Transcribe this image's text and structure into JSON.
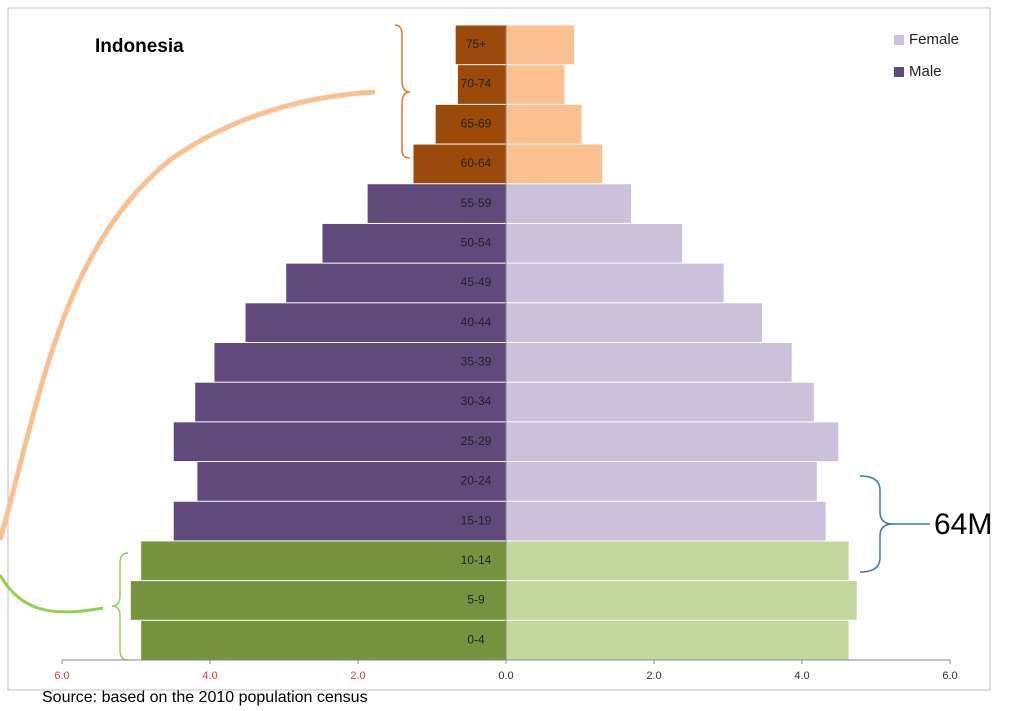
{
  "chart_data": {
    "type": "pyramid",
    "title": "Indonesia",
    "categories": [
      "75+",
      "70-74",
      "65-69",
      "60-64",
      "55-59",
      "50-54",
      "45-49",
      "40-44",
      "35-39",
      "30-34",
      "25-29",
      "20-24",
      "15-19",
      "10-14",
      "5-9",
      "0-4"
    ],
    "series": [
      {
        "name": "Female",
        "color": "#ccc1da",
        "values": [
          0.92,
          0.79,
          1.02,
          1.3,
          1.69,
          2.38,
          2.94,
          3.46,
          3.86,
          4.16,
          4.49,
          4.2,
          4.32,
          4.63,
          4.74,
          4.63
        ],
        "colors": [
          "#fac090",
          "#fac090",
          "#fac090",
          "#fac090",
          "#ccc1da",
          "#ccc1da",
          "#ccc1da",
          "#ccc1da",
          "#ccc1da",
          "#ccc1da",
          "#ccc1da",
          "#ccc1da",
          "#ccc1da",
          "#c3d69b",
          "#c3d69b",
          "#c3d69b"
        ]
      },
      {
        "name": "Male",
        "color": "#5f4a7b",
        "values": [
          -0.68,
          -0.65,
          -0.95,
          -1.25,
          -1.87,
          -2.48,
          -2.97,
          -3.52,
          -3.94,
          -4.2,
          -4.49,
          -4.17,
          -4.49,
          -4.93,
          -5.07,
          -4.93
        ],
        "colors": [
          "#9c4a0a",
          "#9c4a0a",
          "#9c4a0a",
          "#9c4a0a",
          "#5f4a7b",
          "#5f4a7b",
          "#5f4a7b",
          "#5f4a7b",
          "#5f4a7b",
          "#5f4a7b",
          "#5f4a7b",
          "#5f4a7b",
          "#5f4a7b",
          "#76923c",
          "#76923c",
          "#76923c"
        ]
      }
    ],
    "xlim": [
      -6,
      6
    ],
    "xticks": [
      {
        "value": -6,
        "label": "6.0"
      },
      {
        "value": -4,
        "label": "4.0"
      },
      {
        "value": -2,
        "label": "2.0"
      },
      {
        "value": 0,
        "label": "0.0"
      },
      {
        "value": 2,
        "label": "2.0"
      },
      {
        "value": 4,
        "label": "4.0"
      },
      {
        "value": 6,
        "label": "6.0"
      }
    ],
    "negative_tick_color": "#e03c3c",
    "legend": "upper right",
    "annotation": "64M",
    "source": "Source: based on the 2010 population census"
  }
}
